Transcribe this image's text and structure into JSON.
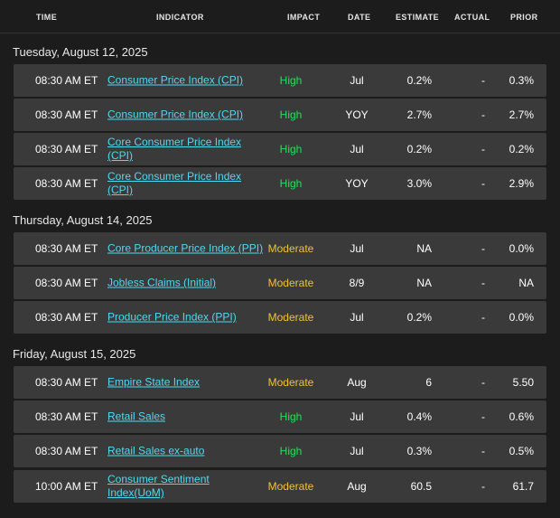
{
  "columns": {
    "time": "TIME",
    "indicator": "INDICATOR",
    "impact": "IMPACT",
    "date": "DATE",
    "estimate": "ESTIMATE",
    "actual": "ACTUAL",
    "prior": "PRIOR"
  },
  "groups": [
    {
      "date_label": "Tuesday, August 12, 2025",
      "rows": [
        {
          "time": "08:30 AM ET",
          "indicator": "Consumer Price Index (CPI)",
          "impact": "High",
          "date": "Jul",
          "estimate": "0.2%",
          "actual": "-",
          "prior": "0.3%"
        },
        {
          "time": "08:30 AM ET",
          "indicator": "Consumer Price Index (CPI)",
          "impact": "High",
          "date": "YOY",
          "estimate": "2.7%",
          "actual": "-",
          "prior": "2.7%"
        },
        {
          "time": "08:30 AM ET",
          "indicator": "Core Consumer Price Index (CPI)",
          "impact": "High",
          "date": "Jul",
          "estimate": "0.2%",
          "actual": "-",
          "prior": "0.2%"
        },
        {
          "time": "08:30 AM ET",
          "indicator": "Core Consumer Price Index (CPI)",
          "impact": "High",
          "date": "YOY",
          "estimate": "3.0%",
          "actual": "-",
          "prior": "2.9%"
        }
      ]
    },
    {
      "date_label": "Thursday, August 14, 2025",
      "rows": [
        {
          "time": "08:30 AM ET",
          "indicator": "Core Producer Price Index (PPI)",
          "impact": "Moderate",
          "date": "Jul",
          "estimate": "NA",
          "actual": "-",
          "prior": "0.0%"
        },
        {
          "time": "08:30 AM ET",
          "indicator": "Jobless Claims (Initial)",
          "impact": "Moderate",
          "date": "8/9",
          "estimate": "NA",
          "actual": "-",
          "prior": "NA"
        },
        {
          "time": "08:30 AM ET",
          "indicator": "Producer Price Index (PPI)",
          "impact": "Moderate",
          "date": "Jul",
          "estimate": "0.2%",
          "actual": "-",
          "prior": "0.0%"
        }
      ]
    },
    {
      "date_label": "Friday, August 15, 2025",
      "rows": [
        {
          "time": "08:30 AM ET",
          "indicator": "Empire State Index",
          "impact": "Moderate",
          "date": "Aug",
          "estimate": "6",
          "actual": "-",
          "prior": "5.50"
        },
        {
          "time": "08:30 AM ET",
          "indicator": "Retail Sales",
          "impact": "High",
          "date": "Jul",
          "estimate": "0.4%",
          "actual": "-",
          "prior": "0.6%"
        },
        {
          "time": "08:30 AM ET",
          "indicator": "Retail Sales ex-auto",
          "impact": "High",
          "date": "Jul",
          "estimate": "0.3%",
          "actual": "-",
          "prior": "0.5%"
        },
        {
          "time": "10:00 AM ET",
          "indicator": "Consumer Sentiment Index(UoM)",
          "impact": "Moderate",
          "date": "Aug",
          "estimate": "60.5",
          "actual": "-",
          "prior": "61.7"
        }
      ]
    }
  ],
  "colors": {
    "background": "#1c1c1c",
    "row_background": "#3a3a3a",
    "link": "#4fd9ef",
    "impact_high": "#22e05a",
    "impact_moderate": "#f2c230"
  }
}
